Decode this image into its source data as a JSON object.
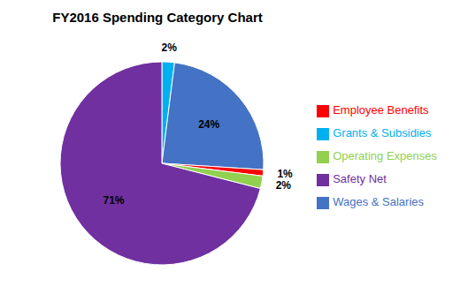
{
  "chart_data": {
    "type": "pie",
    "title": "FY2016 Spending Category Chart",
    "categories": [
      "Grants & Subsidies",
      "Wages & Salaries",
      "Employee Benefits",
      "Operating Expenses",
      "Safety Net"
    ],
    "values": [
      2,
      24,
      1,
      2,
      71
    ],
    "value_labels": [
      "2%",
      "24%",
      "1%",
      "2%",
      "71%"
    ],
    "colors": [
      "#00B0F0",
      "#4472C4",
      "#FF0000",
      "#92D050",
      "#7030A0"
    ],
    "data_labels": true,
    "legend": "right"
  }
}
